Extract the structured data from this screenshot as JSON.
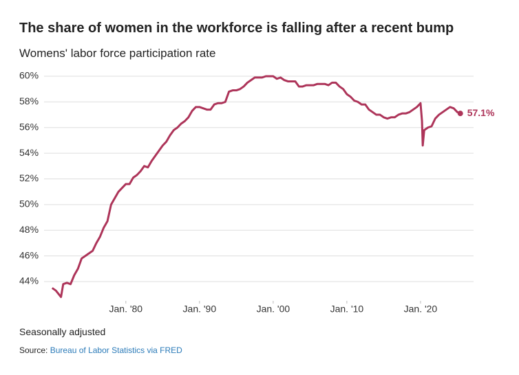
{
  "chart_data": {
    "type": "line",
    "title": "The share of women in the workforce is falling after a recent bump",
    "subtitle": "Womens' labor force participation rate",
    "note": "Seasonally adjusted",
    "source_prefix": "Source:",
    "source_link": "Bureau of Labor Statistics via FRED",
    "xlim": [
      1968.9,
      2027.2
    ],
    "ylim": [
      42.5,
      61
    ],
    "xticks": [
      {
        "value": 1980,
        "label": "Jan. '80"
      },
      {
        "value": 1990,
        "label": "Jan. '90"
      },
      {
        "value": 2000,
        "label": "Jan. '00"
      },
      {
        "value": 2010,
        "label": "Jan. '10"
      },
      {
        "value": 2020,
        "label": "Jan. '20"
      }
    ],
    "yticks": [
      {
        "value": 44,
        "label": "44%"
      },
      {
        "value": 46,
        "label": "46%"
      },
      {
        "value": 48,
        "label": "48%"
      },
      {
        "value": 50,
        "label": "50%"
      },
      {
        "value": 52,
        "label": "52%"
      },
      {
        "value": 54,
        "label": "54%"
      },
      {
        "value": 56,
        "label": "56%"
      },
      {
        "value": 58,
        "label": "58%"
      },
      {
        "value": 60,
        "label": "60%"
      }
    ],
    "grid": true,
    "x": [
      1970,
      1970.5,
      1971.2,
      1971.5,
      1972,
      1972.5,
      1973,
      1973.5,
      1974,
      1974.5,
      1975,
      1975.5,
      1976,
      1976.5,
      1977,
      1977.5,
      1978,
      1978.5,
      1979,
      1979.5,
      1980,
      1980.5,
      1981,
      1981.5,
      1982,
      1982.5,
      1983,
      1983.5,
      1984,
      1984.5,
      1985,
      1985.5,
      1986,
      1986.5,
      1987,
      1987.5,
      1988,
      1988.5,
      1989,
      1989.5,
      1990,
      1990.5,
      1991,
      1991.5,
      1992,
      1992.5,
      1993,
      1993.5,
      1994,
      1994.5,
      1995,
      1995.5,
      1996,
      1996.5,
      1997,
      1997.5,
      1998,
      1998.5,
      1999,
      1999.5,
      2000,
      2000.5,
      2001,
      2001.5,
      2002,
      2002.5,
      2003,
      2003.5,
      2004,
      2004.5,
      2005,
      2005.5,
      2006,
      2006.5,
      2007,
      2007.5,
      2008,
      2008.5,
      2009,
      2009.5,
      2010,
      2010.5,
      2011,
      2011.5,
      2012,
      2012.5,
      2013,
      2013.5,
      2014,
      2014.5,
      2015,
      2015.5,
      2016,
      2016.5,
      2017,
      2017.5,
      2018,
      2018.5,
      2019,
      2019.5,
      2020,
      2020.2,
      2020.3,
      2020.5,
      2021,
      2021.5,
      2022,
      2022.5,
      2023,
      2023.5,
      2024,
      2024.5,
      2025,
      2025.4
    ],
    "series": [
      {
        "name": "Womens' labor force participation rate",
        "color": "#ad3459",
        "last_label": "57.1%",
        "values": [
          43.5,
          43.3,
          42.8,
          43.8,
          43.9,
          43.8,
          44.5,
          45.0,
          45.8,
          46.0,
          46.2,
          46.4,
          47.0,
          47.5,
          48.2,
          48.7,
          50.0,
          50.5,
          51.0,
          51.3,
          51.6,
          51.6,
          52.1,
          52.3,
          52.6,
          53.0,
          52.9,
          53.4,
          53.8,
          54.2,
          54.6,
          54.9,
          55.4,
          55.8,
          56.0,
          56.3,
          56.5,
          56.8,
          57.3,
          57.6,
          57.6,
          57.5,
          57.4,
          57.4,
          57.8,
          57.9,
          57.9,
          58.0,
          58.8,
          58.9,
          58.9,
          59.0,
          59.2,
          59.5,
          59.7,
          59.9,
          59.9,
          59.9,
          60.0,
          60.0,
          60.0,
          59.8,
          59.9,
          59.7,
          59.6,
          59.6,
          59.6,
          59.2,
          59.2,
          59.3,
          59.3,
          59.3,
          59.4,
          59.4,
          59.4,
          59.3,
          59.5,
          59.5,
          59.2,
          59.0,
          58.6,
          58.4,
          58.1,
          58.0,
          57.8,
          57.8,
          57.4,
          57.2,
          57.0,
          57.0,
          56.8,
          56.7,
          56.8,
          56.8,
          57.0,
          57.1,
          57.1,
          57.2,
          57.4,
          57.6,
          57.9,
          56.5,
          54.6,
          55.8,
          56.0,
          56.1,
          56.7,
          57.0,
          57.2,
          57.4,
          57.6,
          57.5,
          57.2,
          57.1
        ]
      }
    ]
  }
}
